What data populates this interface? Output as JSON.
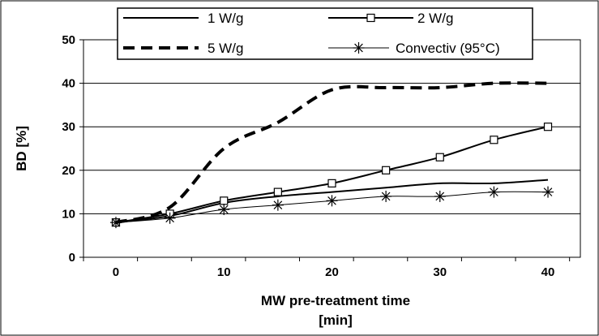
{
  "chart_data": {
    "type": "line",
    "xlabel_line1": "MW pre-treatment time",
    "xlabel_line2": "[min]",
    "ylabel": "BD [%]",
    "xlim": [
      -3,
      43
    ],
    "ylim": [
      0,
      50
    ],
    "x_ticks": [
      0,
      10,
      20,
      30,
      40
    ],
    "y_ticks": [
      0,
      10,
      20,
      30,
      40,
      50
    ],
    "grid": "horizontal",
    "legend_position": "top",
    "series": [
      {
        "name": "1 W/g",
        "style": "solid",
        "marker": "none",
        "color": "#000000",
        "x": [
          0,
          5,
          10,
          15,
          20,
          25,
          30,
          35,
          40
        ],
        "y": [
          8,
          9.5,
          12.5,
          14,
          15,
          16,
          17,
          17,
          17.8
        ]
      },
      {
        "name": "2 W/g",
        "style": "solid",
        "marker": "square",
        "color": "#000000",
        "x": [
          0,
          5,
          10,
          15,
          20,
          25,
          30,
          35,
          40
        ],
        "y": [
          8,
          10,
          13,
          15,
          17,
          20,
          23,
          27,
          30
        ]
      },
      {
        "name": "5 W/g",
        "style": "dashed",
        "marker": "none",
        "color": "#000000",
        "x": [
          0,
          5,
          10,
          15,
          20,
          25,
          30,
          35,
          40
        ],
        "y": [
          8,
          11.5,
          25,
          31,
          38.5,
          39,
          39,
          40,
          40
        ]
      },
      {
        "name": "Convectiv (95°C)",
        "style": "thin",
        "marker": "asterisk",
        "color": "#000000",
        "x": [
          0,
          5,
          10,
          15,
          20,
          25,
          30,
          35,
          40
        ],
        "y": [
          8,
          9,
          11,
          12,
          13,
          14,
          14,
          15,
          15
        ]
      }
    ]
  }
}
